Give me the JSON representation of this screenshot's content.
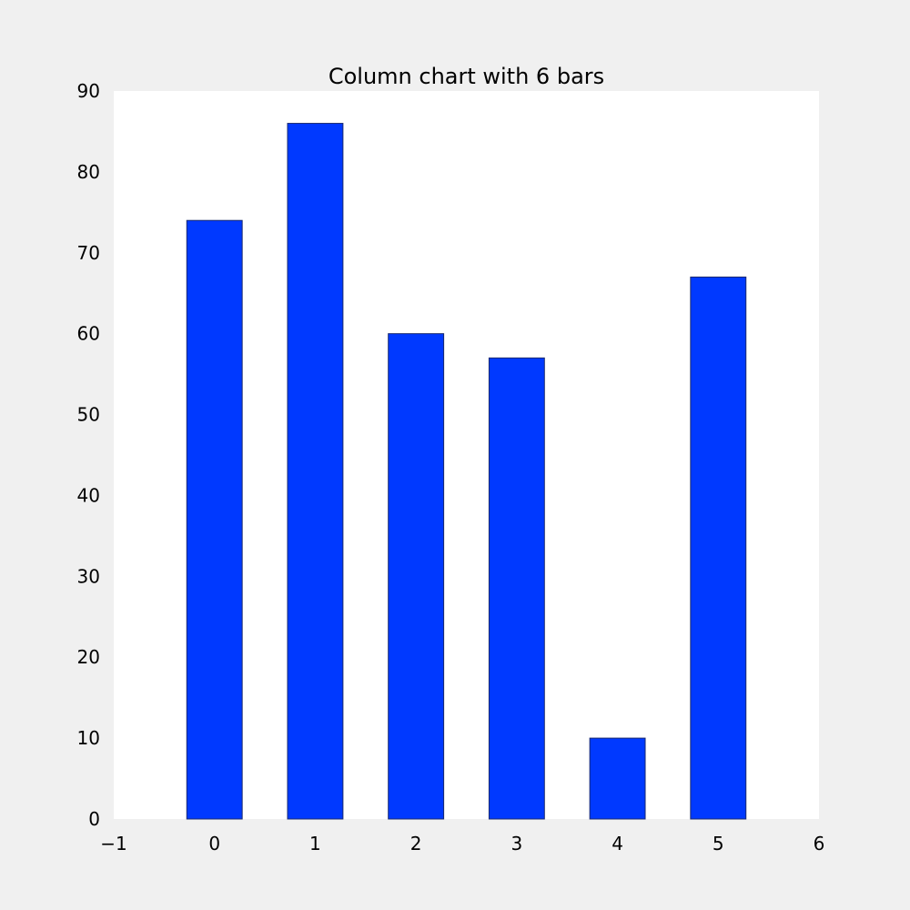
{
  "chart_data": {
    "type": "bar",
    "title": "Column chart with 6 bars",
    "xlabel": "",
    "ylabel": "",
    "x": [
      0,
      1,
      2,
      3,
      4,
      5
    ],
    "values": [
      74,
      86,
      60,
      57,
      10,
      67
    ],
    "xlim": [
      -1,
      6
    ],
    "ylim": [
      0,
      90
    ],
    "xticks": [
      -1,
      0,
      1,
      2,
      3,
      4,
      5,
      6
    ],
    "xtick_labels": [
      "−1",
      "0",
      "1",
      "2",
      "3",
      "4",
      "5",
      "6"
    ],
    "yticks": [
      0,
      10,
      20,
      30,
      40,
      50,
      60,
      70,
      80,
      90
    ],
    "ytick_labels": [
      "0",
      "10",
      "20",
      "30",
      "40",
      "50",
      "60",
      "70",
      "80",
      "90"
    ],
    "bar_width": 0.55,
    "grid": false,
    "legend": "none",
    "colors": {
      "bar": "#0039ff",
      "bar_edge": "#1a2a6e",
      "plot_background": "#ffffff",
      "figure_background": "#f0f0f0"
    }
  }
}
